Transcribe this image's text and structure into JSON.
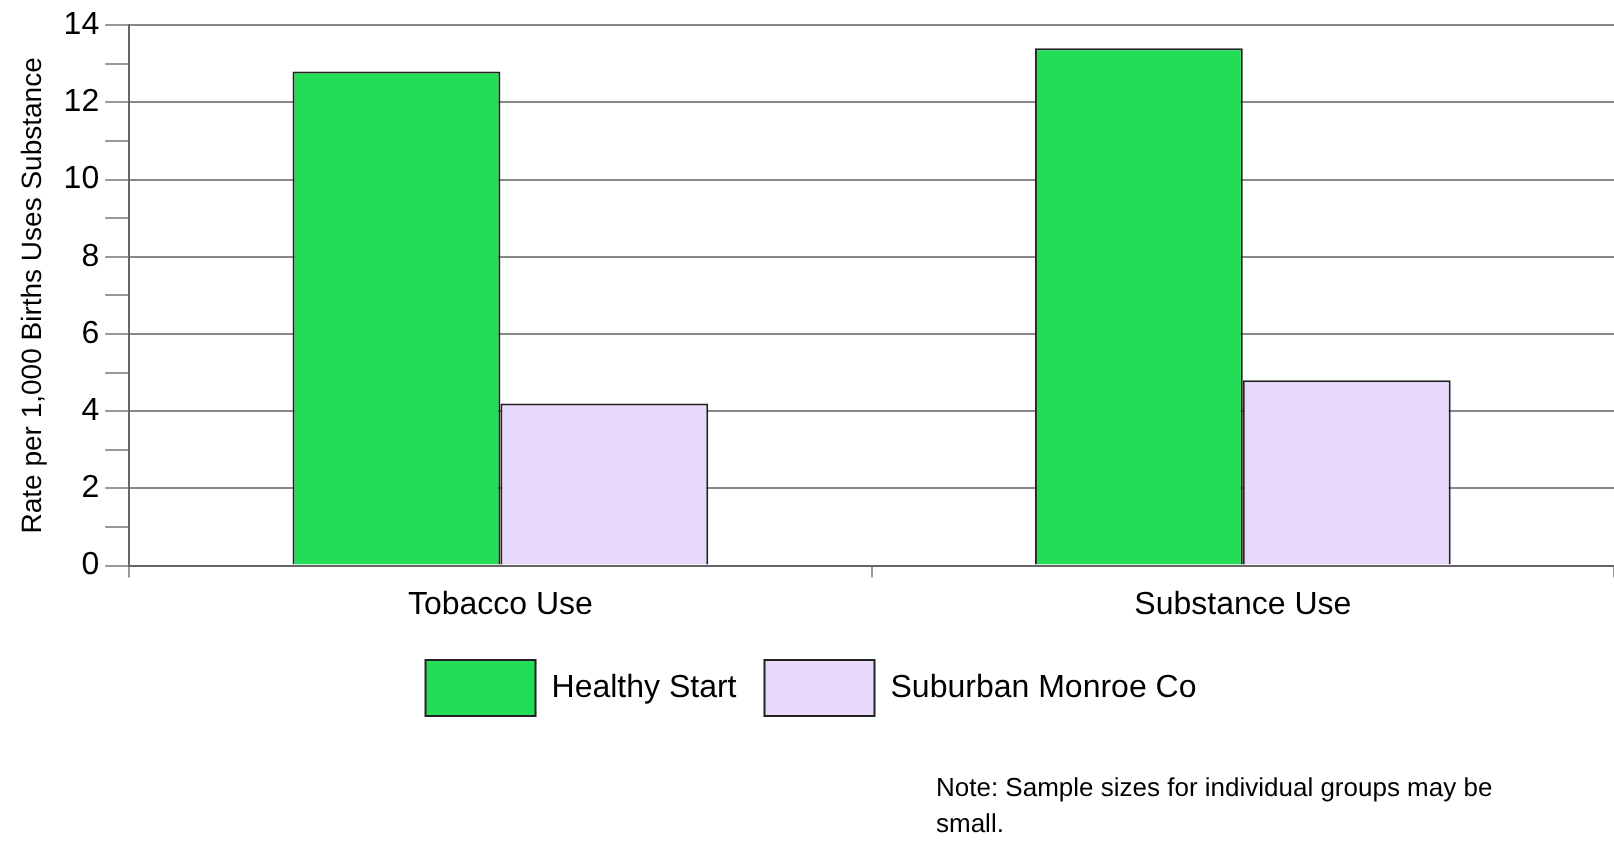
{
  "chart_data": {
    "type": "bar",
    "ylabel": "Rate per 1,000 Births Uses Substance",
    "categories": [
      "Tobacco Use",
      "Substance Use"
    ],
    "series": [
      {
        "name": "Healthy Start",
        "color": "#22dd55",
        "values": [
          12.8,
          13.4
        ]
      },
      {
        "name": "Suburban Monroe Co",
        "color": "#e8d8fc",
        "values": [
          4.2,
          4.8
        ]
      }
    ],
    "ylim": [
      0,
      14
    ],
    "yticks": [
      0,
      {
        "value": 1,
        "label": null
      },
      2,
      {
        "value": 3,
        "label": null
      },
      4,
      {
        "value": 5,
        "label": null
      },
      6,
      {
        "value": 7,
        "label": null
      },
      8,
      {
        "value": 9,
        "label": null
      },
      10,
      {
        "value": 11,
        "label": null
      },
      12,
      {
        "value": 13,
        "label": null
      },
      14
    ],
    "grid": "y",
    "legend": "bottom",
    "annotations": [
      "Note: Sample sizes for individual groups may be small."
    ]
  }
}
